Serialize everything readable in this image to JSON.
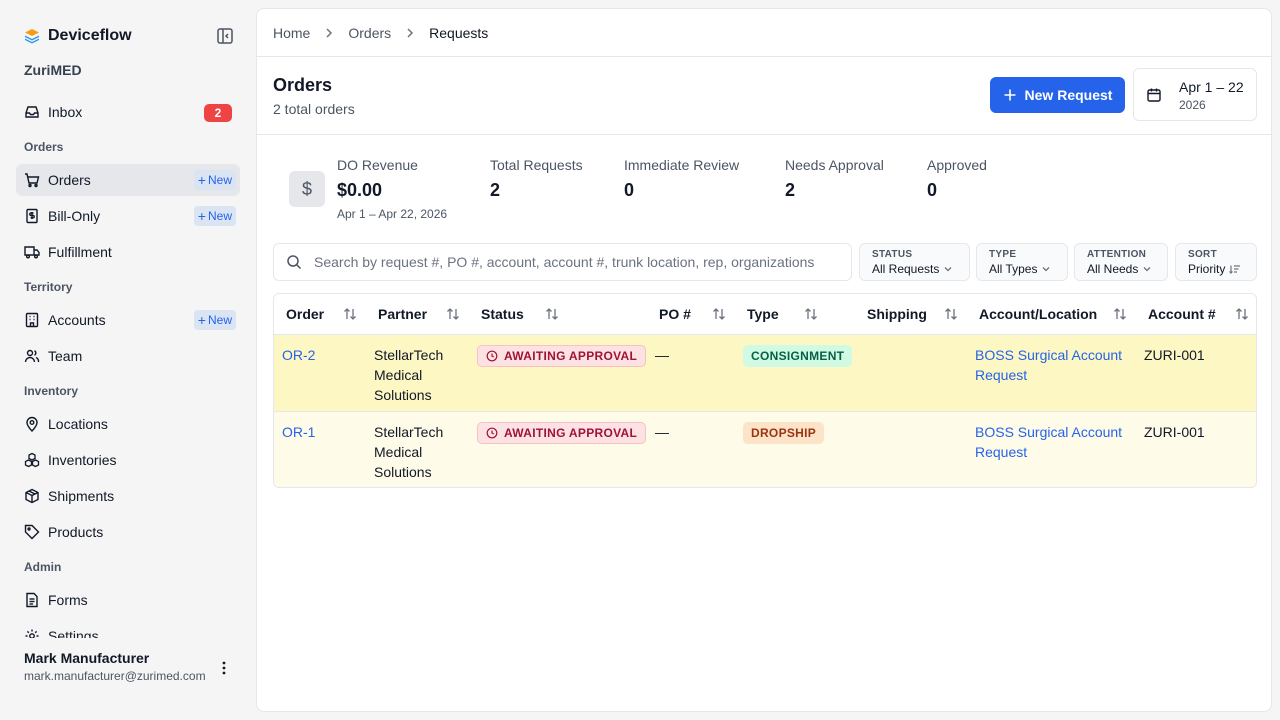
{
  "app": {
    "brand": "Deviceflow",
    "org": "ZuriMED",
    "accent": "#2563eb"
  },
  "sidebar": {
    "inbox": {
      "label": "Inbox",
      "count": "2"
    },
    "sections": {
      "orders": "Orders",
      "territory": "Territory",
      "inventory": "Inventory",
      "admin": "Admin"
    },
    "items": {
      "orders": {
        "label": "Orders",
        "new": "New"
      },
      "bill_only": {
        "label": "Bill-Only",
        "new": "New"
      },
      "fulfillment": {
        "label": "Fulfillment"
      },
      "accounts": {
        "label": "Accounts",
        "new": "New"
      },
      "team": {
        "label": "Team"
      },
      "locations": {
        "label": "Locations"
      },
      "inventories": {
        "label": "Inventories"
      },
      "shipments": {
        "label": "Shipments"
      },
      "products": {
        "label": "Products"
      },
      "forms": {
        "label": "Forms"
      },
      "settings": {
        "label": "Settings"
      }
    },
    "user": {
      "name": "Mark Manufacturer",
      "email": "mark.manufacturer@zurimed.com"
    }
  },
  "breadcrumb": [
    "Home",
    "Orders",
    "Requests"
  ],
  "header": {
    "title": "Orders",
    "subtitle": "2 total orders",
    "new_request": "New Request",
    "date_range": "Apr 1 – 22",
    "date_year": "2026"
  },
  "stats": {
    "revenue": {
      "label": "DO Revenue",
      "value": "$0.00",
      "range": "Apr 1 – Apr 22, 2026",
      "icon": "$"
    },
    "total": {
      "label": "Total Requests",
      "value": "2"
    },
    "immediate": {
      "label": "Immediate Review",
      "value": "0"
    },
    "needs": {
      "label": "Needs Approval",
      "value": "2"
    },
    "approved": {
      "label": "Approved",
      "value": "0"
    }
  },
  "search": {
    "placeholder": "Search by request #, PO #, account, account #, trunk location, rep, organizations"
  },
  "filters": {
    "status": {
      "label": "STATUS",
      "value": "All Requests"
    },
    "type": {
      "label": "TYPE",
      "value": "All Types"
    },
    "attention": {
      "label": "ATTENTION",
      "value": "All Needs"
    },
    "sort": {
      "label": "SORT",
      "value": "Priority"
    }
  },
  "table": {
    "columns": [
      "Order",
      "Partner",
      "Status",
      "PO #",
      "Type",
      "Shipping",
      "Account/Location",
      "Account #"
    ],
    "rows": [
      {
        "order": "OR-2",
        "partner": "StellarTech Medical Solutions",
        "status": "AWAITING APPROVAL",
        "po": "—",
        "type": "CONSIGNMENT",
        "shipping": "",
        "account_location": "BOSS Surgical Account Request",
        "account_no": "ZURI-001"
      },
      {
        "order": "OR-1",
        "partner": "StellarTech Medical Solutions",
        "status": "AWAITING APPROVAL",
        "po": "—",
        "type": "DROPSHIP",
        "shipping": "",
        "account_location": "BOSS Surgical Account Request",
        "account_no": "ZURI-001"
      }
    ]
  }
}
